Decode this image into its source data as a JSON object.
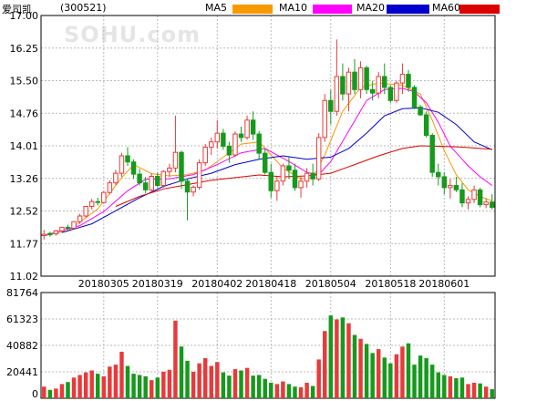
{
  "header": {
    "name": "爱司凯",
    "code": "(300521)",
    "watermark": "SOHU.com",
    "legend": [
      {
        "label": "MA5",
        "color": "#f79a00"
      },
      {
        "label": "MA10",
        "color": "#ff00ff"
      },
      {
        "label": "MA20",
        "color": "#0000cc"
      },
      {
        "label": "MA60",
        "color": "#dd0000"
      }
    ]
  },
  "colors": {
    "up": "#e83a3a",
    "down": "#159a1b",
    "grid": "#b9b9b9",
    "axis": "#000000"
  },
  "chart_data": {
    "type": "candlestick",
    "price_axis": {
      "ticks": [
        "17.00",
        "16.25",
        "15.50",
        "14.76",
        "14.01",
        "13.26",
        "12.52",
        "11.77",
        "11.02"
      ],
      "ylim": [
        11.02,
        17.0
      ]
    },
    "volume_axis": {
      "ticks": [
        "81764",
        "61323",
        "40882",
        "20441",
        "0"
      ],
      "ylim": [
        0,
        81764
      ]
    },
    "x_labels": [
      {
        "index": 10,
        "label": "20180305"
      },
      {
        "index": 19,
        "label": "20180319"
      },
      {
        "index": 29,
        "label": "20180402"
      },
      {
        "index": 38,
        "label": "20180418"
      },
      {
        "index": 48,
        "label": "20180504"
      },
      {
        "index": 58,
        "label": "20180518"
      },
      {
        "index": 67,
        "label": "20180601"
      }
    ],
    "ohlc": [
      [
        11.95,
        12.08,
        11.86,
        11.98
      ],
      [
        12.0,
        12.04,
        11.93,
        11.97
      ],
      [
        11.99,
        12.08,
        11.95,
        12.06
      ],
      [
        12.06,
        12.15,
        12.03,
        12.14
      ],
      [
        12.14,
        12.2,
        12.08,
        12.12
      ],
      [
        12.12,
        12.28,
        12.1,
        12.27
      ],
      [
        12.27,
        12.45,
        12.22,
        12.4
      ],
      [
        12.4,
        12.63,
        12.36,
        12.62
      ],
      [
        12.62,
        12.79,
        12.55,
        12.73
      ],
      [
        12.73,
        12.82,
        12.64,
        12.71
      ],
      [
        12.71,
        12.97,
        12.68,
        12.94
      ],
      [
        12.94,
        13.22,
        12.9,
        13.16
      ],
      [
        13.16,
        13.46,
        13.11,
        13.38
      ],
      [
        13.38,
        13.85,
        13.3,
        13.78
      ],
      [
        13.78,
        13.98,
        13.55,
        13.64
      ],
      [
        13.64,
        13.7,
        13.25,
        13.36
      ],
      [
        13.36,
        13.48,
        13.1,
        13.16
      ],
      [
        13.16,
        13.3,
        12.92,
        13.0
      ],
      [
        13.0,
        13.38,
        12.95,
        13.31
      ],
      [
        13.31,
        13.4,
        13.06,
        13.1
      ],
      [
        13.1,
        13.45,
        13.05,
        13.42
      ],
      [
        13.42,
        13.6,
        13.3,
        13.5
      ],
      [
        13.5,
        14.7,
        13.4,
        13.86
      ],
      [
        13.86,
        13.9,
        13.02,
        13.2
      ],
      [
        13.2,
        13.25,
        12.3,
        12.95
      ],
      [
        12.95,
        13.1,
        12.85,
        13.06
      ],
      [
        13.06,
        13.7,
        13.0,
        13.62
      ],
      [
        13.62,
        14.05,
        13.55,
        13.98
      ],
      [
        13.98,
        14.2,
        13.8,
        14.1
      ],
      [
        14.1,
        14.6,
        13.95,
        14.3
      ],
      [
        14.3,
        14.4,
        13.92,
        14.0
      ],
      [
        14.0,
        14.1,
        13.62,
        13.8
      ],
      [
        13.8,
        14.34,
        13.75,
        14.28
      ],
      [
        14.28,
        14.45,
        14.1,
        14.2
      ],
      [
        14.2,
        14.7,
        14.15,
        14.6
      ],
      [
        14.6,
        14.8,
        14.15,
        14.28
      ],
      [
        14.28,
        14.35,
        13.7,
        13.84
      ],
      [
        13.84,
        13.95,
        13.35,
        13.4
      ],
      [
        13.4,
        13.6,
        12.82,
        12.98
      ],
      [
        12.98,
        13.3,
        12.75,
        13.2
      ],
      [
        13.2,
        13.6,
        13.1,
        13.55
      ],
      [
        13.55,
        13.75,
        13.25,
        13.45
      ],
      [
        13.45,
        13.6,
        12.98,
        13.05
      ],
      [
        13.05,
        13.3,
        12.82,
        13.2
      ],
      [
        13.2,
        13.5,
        13.05,
        13.38
      ],
      [
        13.38,
        13.6,
        13.1,
        13.25
      ],
      [
        13.25,
        14.3,
        13.2,
        14.2
      ],
      [
        14.2,
        15.2,
        14.1,
        15.05
      ],
      [
        15.05,
        15.3,
        14.5,
        14.8
      ],
      [
        14.8,
        16.45,
        14.7,
        15.6
      ],
      [
        15.6,
        15.9,
        15.05,
        15.2
      ],
      [
        15.2,
        15.8,
        14.8,
        15.7
      ],
      [
        15.7,
        16.0,
        15.2,
        15.3
      ],
      [
        15.3,
        15.95,
        15.1,
        15.8
      ],
      [
        15.8,
        15.85,
        15.2,
        15.3
      ],
      [
        15.3,
        15.5,
        15.05,
        15.22
      ],
      [
        15.22,
        15.7,
        15.1,
        15.6
      ],
      [
        15.6,
        15.9,
        15.2,
        15.35
      ],
      [
        15.35,
        15.4,
        15.0,
        15.05
      ],
      [
        15.05,
        15.5,
        15.0,
        15.45
      ],
      [
        15.45,
        15.9,
        15.2,
        15.65
      ],
      [
        15.65,
        15.75,
        15.25,
        15.35
      ],
      [
        15.35,
        15.4,
        14.85,
        14.9
      ],
      [
        14.9,
        14.95,
        14.7,
        14.72
      ],
      [
        14.72,
        14.8,
        14.2,
        14.25
      ],
      [
        14.25,
        14.3,
        13.3,
        13.4
      ],
      [
        13.4,
        13.6,
        13.1,
        13.3
      ],
      [
        13.3,
        13.4,
        12.9,
        13.05
      ],
      [
        13.05,
        13.25,
        12.8,
        13.1
      ],
      [
        13.1,
        13.3,
        12.95,
        13.0
      ],
      [
        13.0,
        13.15,
        12.6,
        12.7
      ],
      [
        12.7,
        12.85,
        12.55,
        12.78
      ],
      [
        12.78,
        13.1,
        12.7,
        13.0
      ],
      [
        13.0,
        13.05,
        12.6,
        12.66
      ],
      [
        12.66,
        12.8,
        12.58,
        12.72
      ],
      [
        12.72,
        12.9,
        12.55,
        12.6
      ]
    ],
    "volume": [
      9000,
      6500,
      7500,
      11000,
      12500,
      16000,
      18000,
      20000,
      21500,
      19000,
      17000,
      24500,
      26000,
      36000,
      25000,
      19000,
      18000,
      17000,
      14000,
      16000,
      20500,
      22000,
      60000,
      40000,
      29000,
      20500,
      27000,
      31000,
      25000,
      28000,
      20000,
      17500,
      22500,
      21500,
      23500,
      17500,
      18000,
      15000,
      12000,
      11000,
      13000,
      11000,
      9000,
      8500,
      12000,
      9500,
      30000,
      52000,
      64000,
      61000,
      62500,
      58000,
      49000,
      46000,
      42000,
      35000,
      38000,
      31500,
      27000,
      34000,
      40000,
      42500,
      26000,
      33000,
      31000,
      26000,
      20000,
      18000,
      17000,
      15500,
      16000,
      11000,
      12000,
      11500,
      9000,
      7000
    ],
    "ma": {
      "MA5": [
        [
          0,
          11.95
        ],
        [
          4,
          12.06
        ],
        [
          9,
          12.56
        ],
        [
          13,
          13.28
        ],
        [
          15,
          13.58
        ],
        [
          18,
          13.37
        ],
        [
          21,
          13.32
        ],
        [
          24,
          13.35
        ],
        [
          27,
          13.45
        ],
        [
          30,
          13.75
        ],
        [
          33,
          14.05
        ],
        [
          36,
          14.1
        ],
        [
          38,
          13.8
        ],
        [
          40,
          13.5
        ],
        [
          43,
          13.25
        ],
        [
          45,
          13.28
        ],
        [
          47,
          13.8
        ],
        [
          50,
          14.8
        ],
        [
          53,
          15.35
        ],
        [
          56,
          15.45
        ],
        [
          60,
          15.4
        ],
        [
          63,
          15.2
        ],
        [
          65,
          14.6
        ],
        [
          67,
          13.9
        ],
        [
          69,
          13.35
        ],
        [
          71,
          13.0
        ],
        [
          73,
          12.85
        ],
        [
          75,
          12.75
        ]
      ],
      "MA10": [
        [
          0,
          11.95
        ],
        [
          6,
          12.18
        ],
        [
          10,
          12.5
        ],
        [
          14,
          12.98
        ],
        [
          17,
          13.24
        ],
        [
          21,
          13.25
        ],
        [
          25,
          13.35
        ],
        [
          29,
          13.58
        ],
        [
          33,
          13.85
        ],
        [
          37,
          13.95
        ],
        [
          41,
          13.65
        ],
        [
          44,
          13.4
        ],
        [
          46,
          13.35
        ],
        [
          48,
          13.65
        ],
        [
          51,
          14.35
        ],
        [
          54,
          15.05
        ],
        [
          57,
          15.3
        ],
        [
          60,
          15.33
        ],
        [
          62,
          15.25
        ],
        [
          64,
          15.0
        ],
        [
          66,
          14.55
        ],
        [
          68,
          14.0
        ],
        [
          71,
          13.55
        ],
        [
          73,
          13.3
        ],
        [
          75,
          13.1
        ]
      ],
      "MA20": [
        [
          3,
          12.02
        ],
        [
          8,
          12.22
        ],
        [
          12,
          12.52
        ],
        [
          16,
          12.82
        ],
        [
          20,
          13.08
        ],
        [
          24,
          13.25
        ],
        [
          28,
          13.38
        ],
        [
          32,
          13.58
        ],
        [
          36,
          13.7
        ],
        [
          40,
          13.78
        ],
        [
          44,
          13.7
        ],
        [
          48,
          13.75
        ],
        [
          51,
          13.95
        ],
        [
          54,
          14.3
        ],
        [
          57,
          14.7
        ],
        [
          60,
          14.86
        ],
        [
          63,
          14.88
        ],
        [
          66,
          14.78
        ],
        [
          69,
          14.5
        ],
        [
          72,
          14.1
        ],
        [
          75,
          13.92
        ]
      ],
      "MA60": [
        [
          12,
          12.62
        ],
        [
          16,
          12.85
        ],
        [
          20,
          13.02
        ],
        [
          24,
          13.12
        ],
        [
          28,
          13.22
        ],
        [
          32,
          13.28
        ],
        [
          36,
          13.34
        ],
        [
          40,
          13.3
        ],
        [
          44,
          13.32
        ],
        [
          48,
          13.38
        ],
        [
          52,
          13.58
        ],
        [
          56,
          13.78
        ],
        [
          60,
          13.95
        ],
        [
          63,
          14.01
        ],
        [
          66,
          14.0
        ],
        [
          70,
          13.98
        ],
        [
          73,
          13.95
        ],
        [
          75,
          13.93
        ]
      ]
    }
  }
}
